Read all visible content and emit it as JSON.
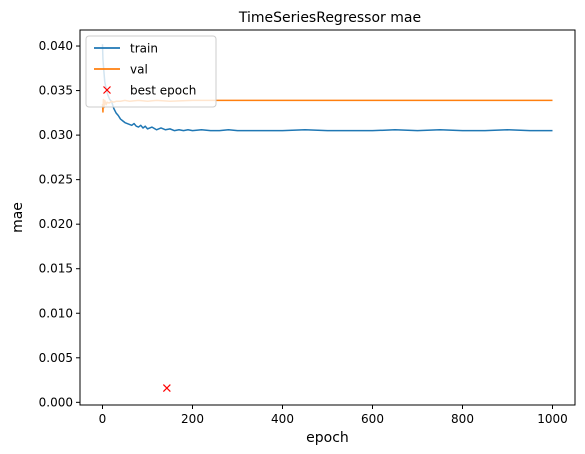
{
  "chart_data": {
    "type": "line",
    "title": "TimeSeriesRegressor mae",
    "xlabel": "epoch",
    "ylabel": "mae",
    "xlim": [
      -50,
      1050
    ],
    "ylim": [
      -0.0003,
      0.0418
    ],
    "x_ticks": [
      0,
      200,
      400,
      600,
      800,
      1000
    ],
    "x_tick_labels": [
      "0",
      "200",
      "400",
      "600",
      "800",
      "1000"
    ],
    "y_ticks": [
      0.0,
      0.005,
      0.01,
      0.015,
      0.02,
      0.025,
      0.03,
      0.035,
      0.04
    ],
    "y_tick_labels": [
      "0.000",
      "0.005",
      "0.010",
      "0.015",
      "0.020",
      "0.025",
      "0.030",
      "0.035",
      "0.040"
    ],
    "grid": false,
    "legend_position": "top-left",
    "series": [
      {
        "name": "train",
        "color": "#1f77b4",
        "kind": "line",
        "x": [
          0,
          1,
          3,
          5,
          8,
          12,
          16,
          20,
          25,
          30,
          35,
          40,
          45,
          50,
          55,
          60,
          65,
          70,
          75,
          80,
          85,
          90,
          95,
          100,
          110,
          120,
          130,
          140,
          150,
          160,
          170,
          180,
          190,
          200,
          220,
          240,
          260,
          280,
          300,
          350,
          400,
          450,
          500,
          550,
          600,
          650,
          700,
          750,
          800,
          850,
          900,
          950,
          1000
        ],
        "y": [
          0.0402,
          0.0385,
          0.0372,
          0.036,
          0.0352,
          0.0345,
          0.034,
          0.0338,
          0.033,
          0.0325,
          0.0322,
          0.0318,
          0.0316,
          0.0314,
          0.0313,
          0.0312,
          0.0311,
          0.0313,
          0.031,
          0.0309,
          0.0311,
          0.0308,
          0.031,
          0.0307,
          0.0309,
          0.0306,
          0.0308,
          0.0306,
          0.0307,
          0.0305,
          0.0306,
          0.0305,
          0.0306,
          0.0305,
          0.0306,
          0.0305,
          0.0305,
          0.0306,
          0.0305,
          0.0305,
          0.0305,
          0.0306,
          0.0305,
          0.0305,
          0.0305,
          0.0306,
          0.0305,
          0.0306,
          0.0305,
          0.0305,
          0.0306,
          0.0305,
          0.0305
        ]
      },
      {
        "name": "val",
        "color": "#ff7f0e",
        "kind": "line",
        "x": [
          0,
          1,
          2,
          3,
          5,
          8,
          10,
          15,
          20,
          25,
          30,
          40,
          50,
          60,
          80,
          100,
          120,
          150,
          200,
          250,
          300,
          400,
          500,
          600,
          700,
          800,
          900,
          1000
        ],
        "y": [
          0.0335,
          0.0326,
          0.034,
          0.0331,
          0.0339,
          0.0334,
          0.0337,
          0.0336,
          0.0338,
          0.0337,
          0.0338,
          0.0338,
          0.0339,
          0.0338,
          0.0339,
          0.0338,
          0.0339,
          0.0338,
          0.0339,
          0.0339,
          0.0339,
          0.0339,
          0.0339,
          0.0339,
          0.0339,
          0.0339,
          0.0339,
          0.0339
        ]
      },
      {
        "name": "best epoch",
        "color": "#ff0000",
        "kind": "marker",
        "x": [
          143
        ],
        "y": [
          0.0016
        ]
      }
    ]
  }
}
